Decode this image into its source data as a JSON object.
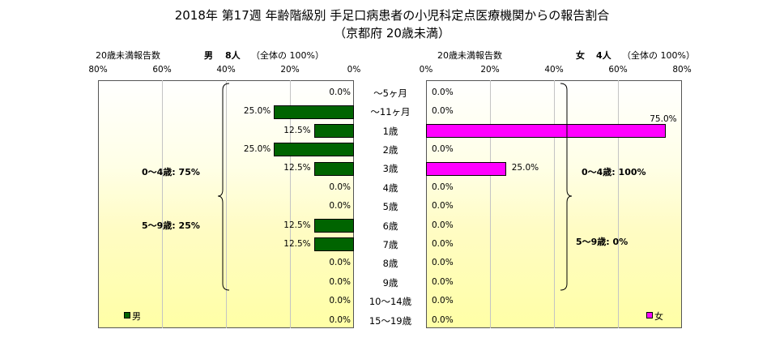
{
  "title": {
    "line1": "2018年 第17週 年齢階級別 手足口病患者の小児科定点医療機関からの報告割合",
    "line2": "（京都府 20歳未満）"
  },
  "left_header": {
    "sub": "20歳未満報告数",
    "sex": "男",
    "count": "8人",
    "note": "（全体の 100%）"
  },
  "right_header": {
    "sub": "20歳未満報告数",
    "sex": "女",
    "count": "4人",
    "note": "（全体の 100%）"
  },
  "legend": {
    "male": "男",
    "female": "女",
    "male_color": "#006400",
    "female_color": "#ff00ff"
  },
  "brackets": {
    "left_0_4": "0～4歳: 75%",
    "left_5_9": "5～9歳: 25%",
    "right_0_4": "0～4歳: 100%",
    "right_5_9": "5～9歳: 0%"
  },
  "chart_data": {
    "type": "bar",
    "orientation": "horizontal-butterfly",
    "title": "2018年 第17週 年齢階級別 手足口病患者の小児科定点医療機関からの報告割合（京都府 20歳未満）",
    "xlim": [
      0,
      80
    ],
    "x_ticks_left": [
      "80%",
      "60%",
      "40%",
      "20%",
      "0%"
    ],
    "x_ticks_right": [
      "0%",
      "20%",
      "40%",
      "60%",
      "80%"
    ],
    "grid": true,
    "legend_position": "bottom-corners",
    "categories": [
      "～5ヶ月",
      "～11ヶ月",
      "1歳",
      "2歳",
      "3歳",
      "4歳",
      "5歳",
      "6歳",
      "7歳",
      "8歳",
      "9歳",
      "10～14歳",
      "15～19歳"
    ],
    "series": [
      {
        "name": "男",
        "values": [
          0.0,
          25.0,
          12.5,
          25.0,
          12.5,
          0.0,
          0.0,
          12.5,
          12.5,
          0.0,
          0.0,
          0.0,
          0.0
        ],
        "labels": [
          "0.0%",
          "25.0%",
          "12.5%",
          "25.0%",
          "12.5%",
          "0.0%",
          "0.0%",
          "12.5%",
          "12.5%",
          "0.0%",
          "0.0%",
          "0.0%",
          "0.0%"
        ]
      },
      {
        "name": "女",
        "values": [
          0.0,
          0.0,
          75.0,
          0.0,
          25.0,
          0.0,
          0.0,
          0.0,
          0.0,
          0.0,
          0.0,
          0.0,
          0.0
        ],
        "labels": [
          "0.0%",
          "0.0%",
          "75.0%",
          "0.0%",
          "25.0%",
          "0.0%",
          "0.0%",
          "0.0%",
          "0.0%",
          "0.0%",
          "0.0%",
          "0.0%",
          "0.0%"
        ]
      }
    ]
  }
}
